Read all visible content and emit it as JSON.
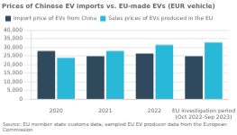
{
  "chart_data": {
    "type": "bar",
    "title": "Prices of Chinese EV imports vs. EU-made EVs (EUR vehicle)",
    "source": "Source: EU member state customs data; sampled EU EV producer data from the European Commission",
    "categories": [
      "2020",
      "2021",
      "2022",
      "EU investigation period\n(Oct 2022-Sep 2023)"
    ],
    "series": [
      {
        "name": "Import price of EVs from China",
        "color": "#2e4a5c",
        "values": [
          28000,
          25000,
          26500,
          25000
        ]
      },
      {
        "name": "Sales prices of EVs produced in the EU",
        "color": "#29b8d8",
        "values": [
          24000,
          28000,
          31500,
          33000
        ]
      }
    ],
    "ylim": [
      0,
      40000
    ],
    "yticks": [
      0,
      {
        "value": 5000,
        "label": "5,000"
      },
      {
        "value": 10000,
        "label": "10,000"
      },
      {
        "value": 15000,
        "label": "15,000"
      },
      {
        "value": 20000,
        "label": "20,000"
      },
      {
        "value": 25000,
        "label": "25,000"
      },
      {
        "value": 30000,
        "label": "30,000"
      },
      {
        "value": 35000,
        "label": "35,000"
      },
      {
        "value": 40000,
        "label": "40,000"
      }
    ],
    "grid": true,
    "legend": "upper left"
  }
}
